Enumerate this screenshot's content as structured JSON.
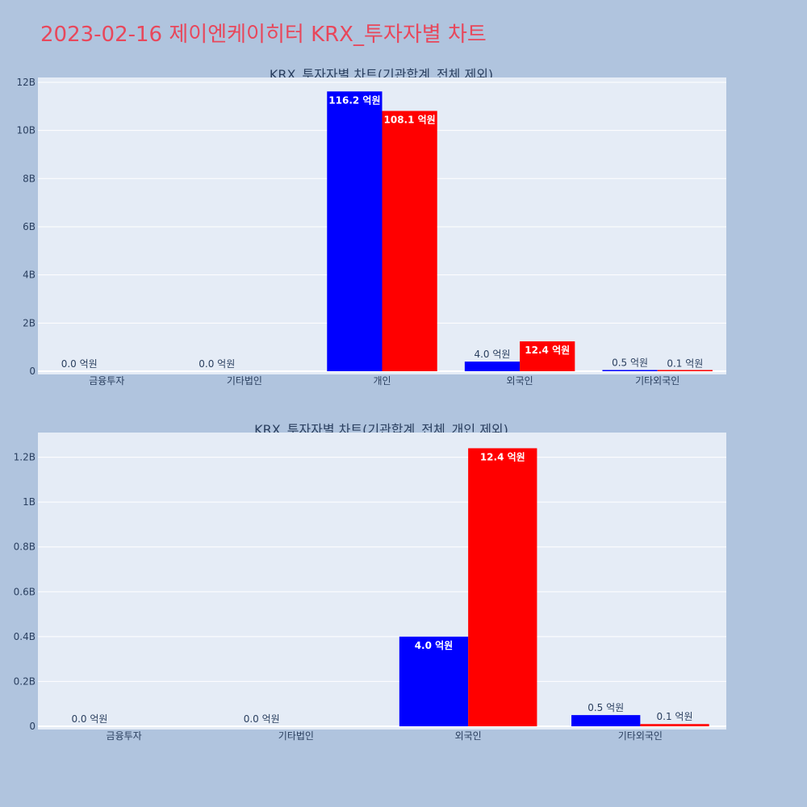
{
  "page": {
    "title": "2023-02-16 제이엔케이히터 KRX_투자자별 차트"
  },
  "chart_data": [
    {
      "type": "bar",
      "title": "KRX_투자자별 차트(기관합계_전체 제외)",
      "categories": [
        "금융투자",
        "기타법인",
        "개인",
        "외국인",
        "기타외국인"
      ],
      "series": [
        {
          "color": "#0000ff",
          "values": [
            0,
            0,
            11620000000,
            400000000,
            50000000
          ],
          "labels": [
            "0.0 억원",
            "0.0 억원",
            "116.2 억원",
            "4.0 억원",
            "0.5 억원"
          ]
        },
        {
          "color": "#ff0000",
          "values": [
            0,
            0,
            10810000000,
            1240000000,
            10000000
          ],
          "labels": [
            "",
            "",
            "108.1 억원",
            "12.4 억원",
            "0.1 억원"
          ]
        }
      ],
      "ylim": [
        0,
        12200000000
      ],
      "yticks": [
        0,
        2000000000,
        4000000000,
        6000000000,
        8000000000,
        10000000000,
        12000000000
      ],
      "ytick_labels": [
        "0",
        "2B",
        "4B",
        "6B",
        "8B",
        "10B",
        "12B"
      ],
      "grid": true,
      "plot_bg": "#e5ecf6"
    },
    {
      "type": "bar",
      "title": "KRX_투자자별 차트(기관합계_전체_개인 제외)",
      "categories": [
        "금융투자",
        "기타법인",
        "외국인",
        "기타외국인"
      ],
      "series": [
        {
          "color": "#0000ff",
          "values": [
            0,
            0,
            400000000,
            50000000
          ],
          "labels": [
            "0.0 억원",
            "0.0 억원",
            "4.0 억원",
            "0.5 억원"
          ]
        },
        {
          "color": "#ff0000",
          "values": [
            0,
            0,
            1240000000,
            10000000
          ],
          "labels": [
            "",
            "",
            "12.4 억원",
            "0.1 억원"
          ]
        }
      ],
      "ylim": [
        0,
        1310000000
      ],
      "yticks": [
        0,
        200000000,
        400000000,
        600000000,
        800000000,
        1000000000,
        1200000000
      ],
      "ytick_labels": [
        "0",
        "0.2B",
        "0.4B",
        "0.6B",
        "0.8B",
        "1B",
        "1.2B"
      ],
      "grid": true,
      "plot_bg": "#e5ecf6"
    }
  ]
}
